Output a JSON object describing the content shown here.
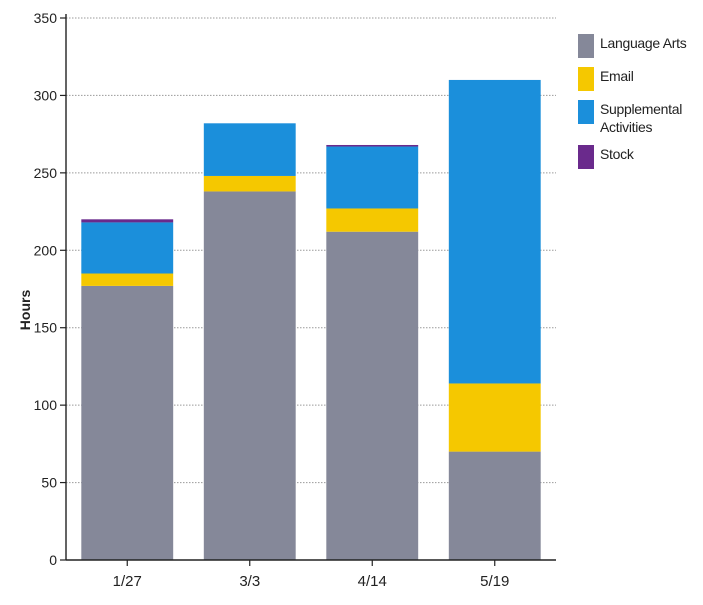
{
  "chart_data": {
    "type": "bar",
    "stacked": true,
    "categories": [
      "1/27",
      "3/3",
      "4/14",
      "5/19"
    ],
    "series": [
      {
        "name": "Language Arts",
        "color": "#858899",
        "values": [
          177,
          238,
          212,
          70
        ]
      },
      {
        "name": "Email",
        "color": "#f5c800",
        "values": [
          8,
          10,
          15,
          44
        ]
      },
      {
        "name": "Supplemental Activities",
        "color": "#1b8fdb",
        "values": [
          33,
          34,
          40,
          196
        ]
      },
      {
        "name": "Stock",
        "color": "#6a2a8c",
        "values": [
          2,
          0,
          1,
          0
        ]
      }
    ],
    "ylabel": "Hours",
    "ylim": [
      0,
      350
    ],
    "yticks": [
      "0",
      "50",
      "100",
      "150",
      "200",
      "250",
      "300",
      "350"
    ],
    "grid": true,
    "legend_position": "right"
  },
  "legend": {
    "items": [
      {
        "label_lines": [
          "Language Arts"
        ],
        "color": "#858899"
      },
      {
        "label_lines": [
          "Email"
        ],
        "color": "#f5c800"
      },
      {
        "label_lines": [
          "Supplemental",
          "Activities"
        ],
        "color": "#1b8fdb"
      },
      {
        "label_lines": [
          "Stock"
        ],
        "color": "#6a2a8c"
      }
    ]
  }
}
